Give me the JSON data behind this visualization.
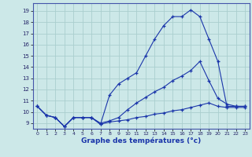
{
  "xlabel": "Graphe des températures (°c)",
  "x_ticks": [
    0,
    1,
    2,
    3,
    4,
    5,
    6,
    7,
    8,
    9,
    10,
    11,
    12,
    13,
    14,
    15,
    16,
    17,
    18,
    19,
    20,
    21,
    22,
    23
  ],
  "y_ticks": [
    9,
    10,
    11,
    12,
    13,
    14,
    15,
    16,
    17,
    18,
    19
  ],
  "ylim": [
    8.5,
    19.7
  ],
  "xlim": [
    -0.5,
    23.5
  ],
  "bg_color": "#cce8e8",
  "line_color": "#1a35aa",
  "grid_color": "#aacece",
  "series_top": [
    10.5,
    9.7,
    9.5,
    8.7,
    9.5,
    9.5,
    9.5,
    8.9,
    11.5,
    12.5,
    13.0,
    13.5,
    15.0,
    16.5,
    17.7,
    18.5,
    18.5,
    19.1,
    18.5,
    16.5,
    14.5,
    10.5,
    10.5,
    10.5
  ],
  "series_mid": [
    10.5,
    9.7,
    9.5,
    8.7,
    9.5,
    9.5,
    9.5,
    9.0,
    9.2,
    9.5,
    10.2,
    10.8,
    11.3,
    11.8,
    12.2,
    12.8,
    13.2,
    13.7,
    14.5,
    12.8,
    11.2,
    10.7,
    10.5,
    10.5
  ],
  "series_bot": [
    10.5,
    9.7,
    9.5,
    8.7,
    9.5,
    9.5,
    9.5,
    8.9,
    9.1,
    9.2,
    9.3,
    9.5,
    9.6,
    9.8,
    9.9,
    10.1,
    10.2,
    10.4,
    10.6,
    10.8,
    10.5,
    10.4,
    10.4,
    10.4
  ]
}
